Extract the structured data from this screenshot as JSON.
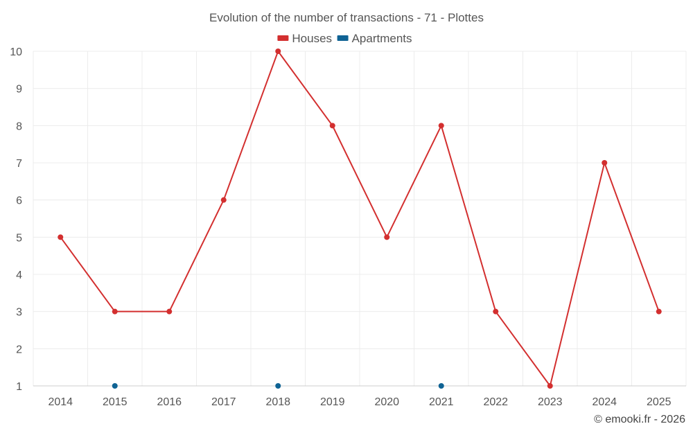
{
  "chart_data": {
    "type": "line",
    "title": "Evolution of the number of transactions - 71 - Plottes",
    "categories": [
      "2014",
      "2015",
      "2016",
      "2017",
      "2018",
      "2019",
      "2020",
      "2021",
      "2022",
      "2023",
      "2024",
      "2025"
    ],
    "series": [
      {
        "name": "Houses",
        "color": "#d32f2f",
        "connected": true,
        "values": [
          5,
          3,
          3,
          6,
          10,
          8,
          5,
          8,
          3,
          1,
          7,
          3
        ]
      },
      {
        "name": "Apartments",
        "color": "#0f6394",
        "connected": false,
        "values": [
          null,
          1,
          null,
          null,
          1,
          null,
          null,
          1,
          null,
          null,
          null,
          null
        ]
      }
    ],
    "ylim": [
      1,
      10
    ],
    "yticks": [
      1,
      2,
      3,
      4,
      5,
      6,
      7,
      8,
      9,
      10
    ],
    "xlabel": "",
    "ylabel": "",
    "grid": true,
    "legend_position": "top-center"
  },
  "credit": "© emooki.fr - 2026"
}
